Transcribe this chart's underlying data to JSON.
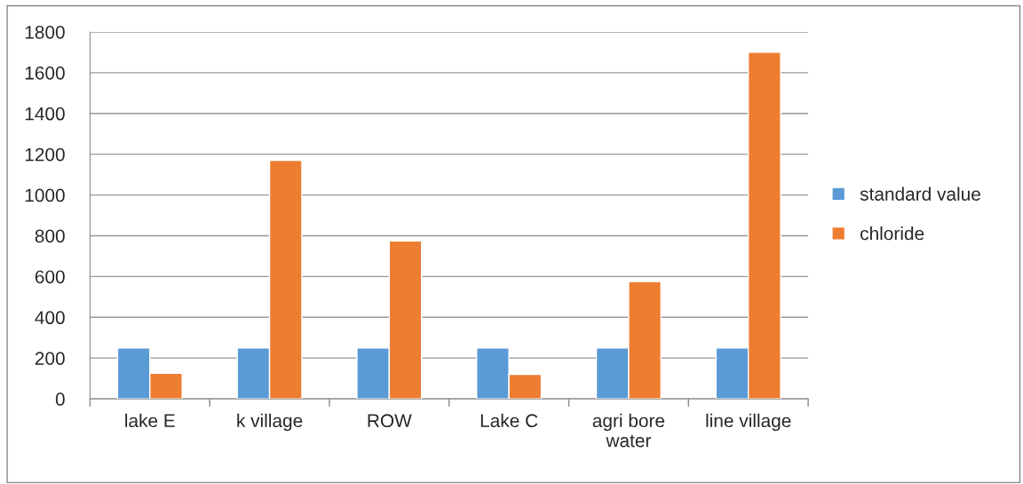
{
  "chart_data": {
    "type": "bar",
    "categories": [
      "lake E",
      "k village",
      "ROW",
      "Lake C",
      "agri bore\nwater",
      "line village"
    ],
    "series": [
      {
        "name": "standard value",
        "color": "#5b9bd5",
        "values": [
          250,
          250,
          250,
          250,
          250,
          250
        ]
      },
      {
        "name": "chloride",
        "color": "#ed7d31",
        "values": [
          125,
          1170,
          775,
          120,
          575,
          1700
        ]
      }
    ],
    "ylim": [
      0,
      1800
    ],
    "yticks": [
      0,
      200,
      400,
      600,
      800,
      1000,
      1200,
      1400,
      1600,
      1800
    ],
    "grid": "y",
    "legend": "right"
  }
}
